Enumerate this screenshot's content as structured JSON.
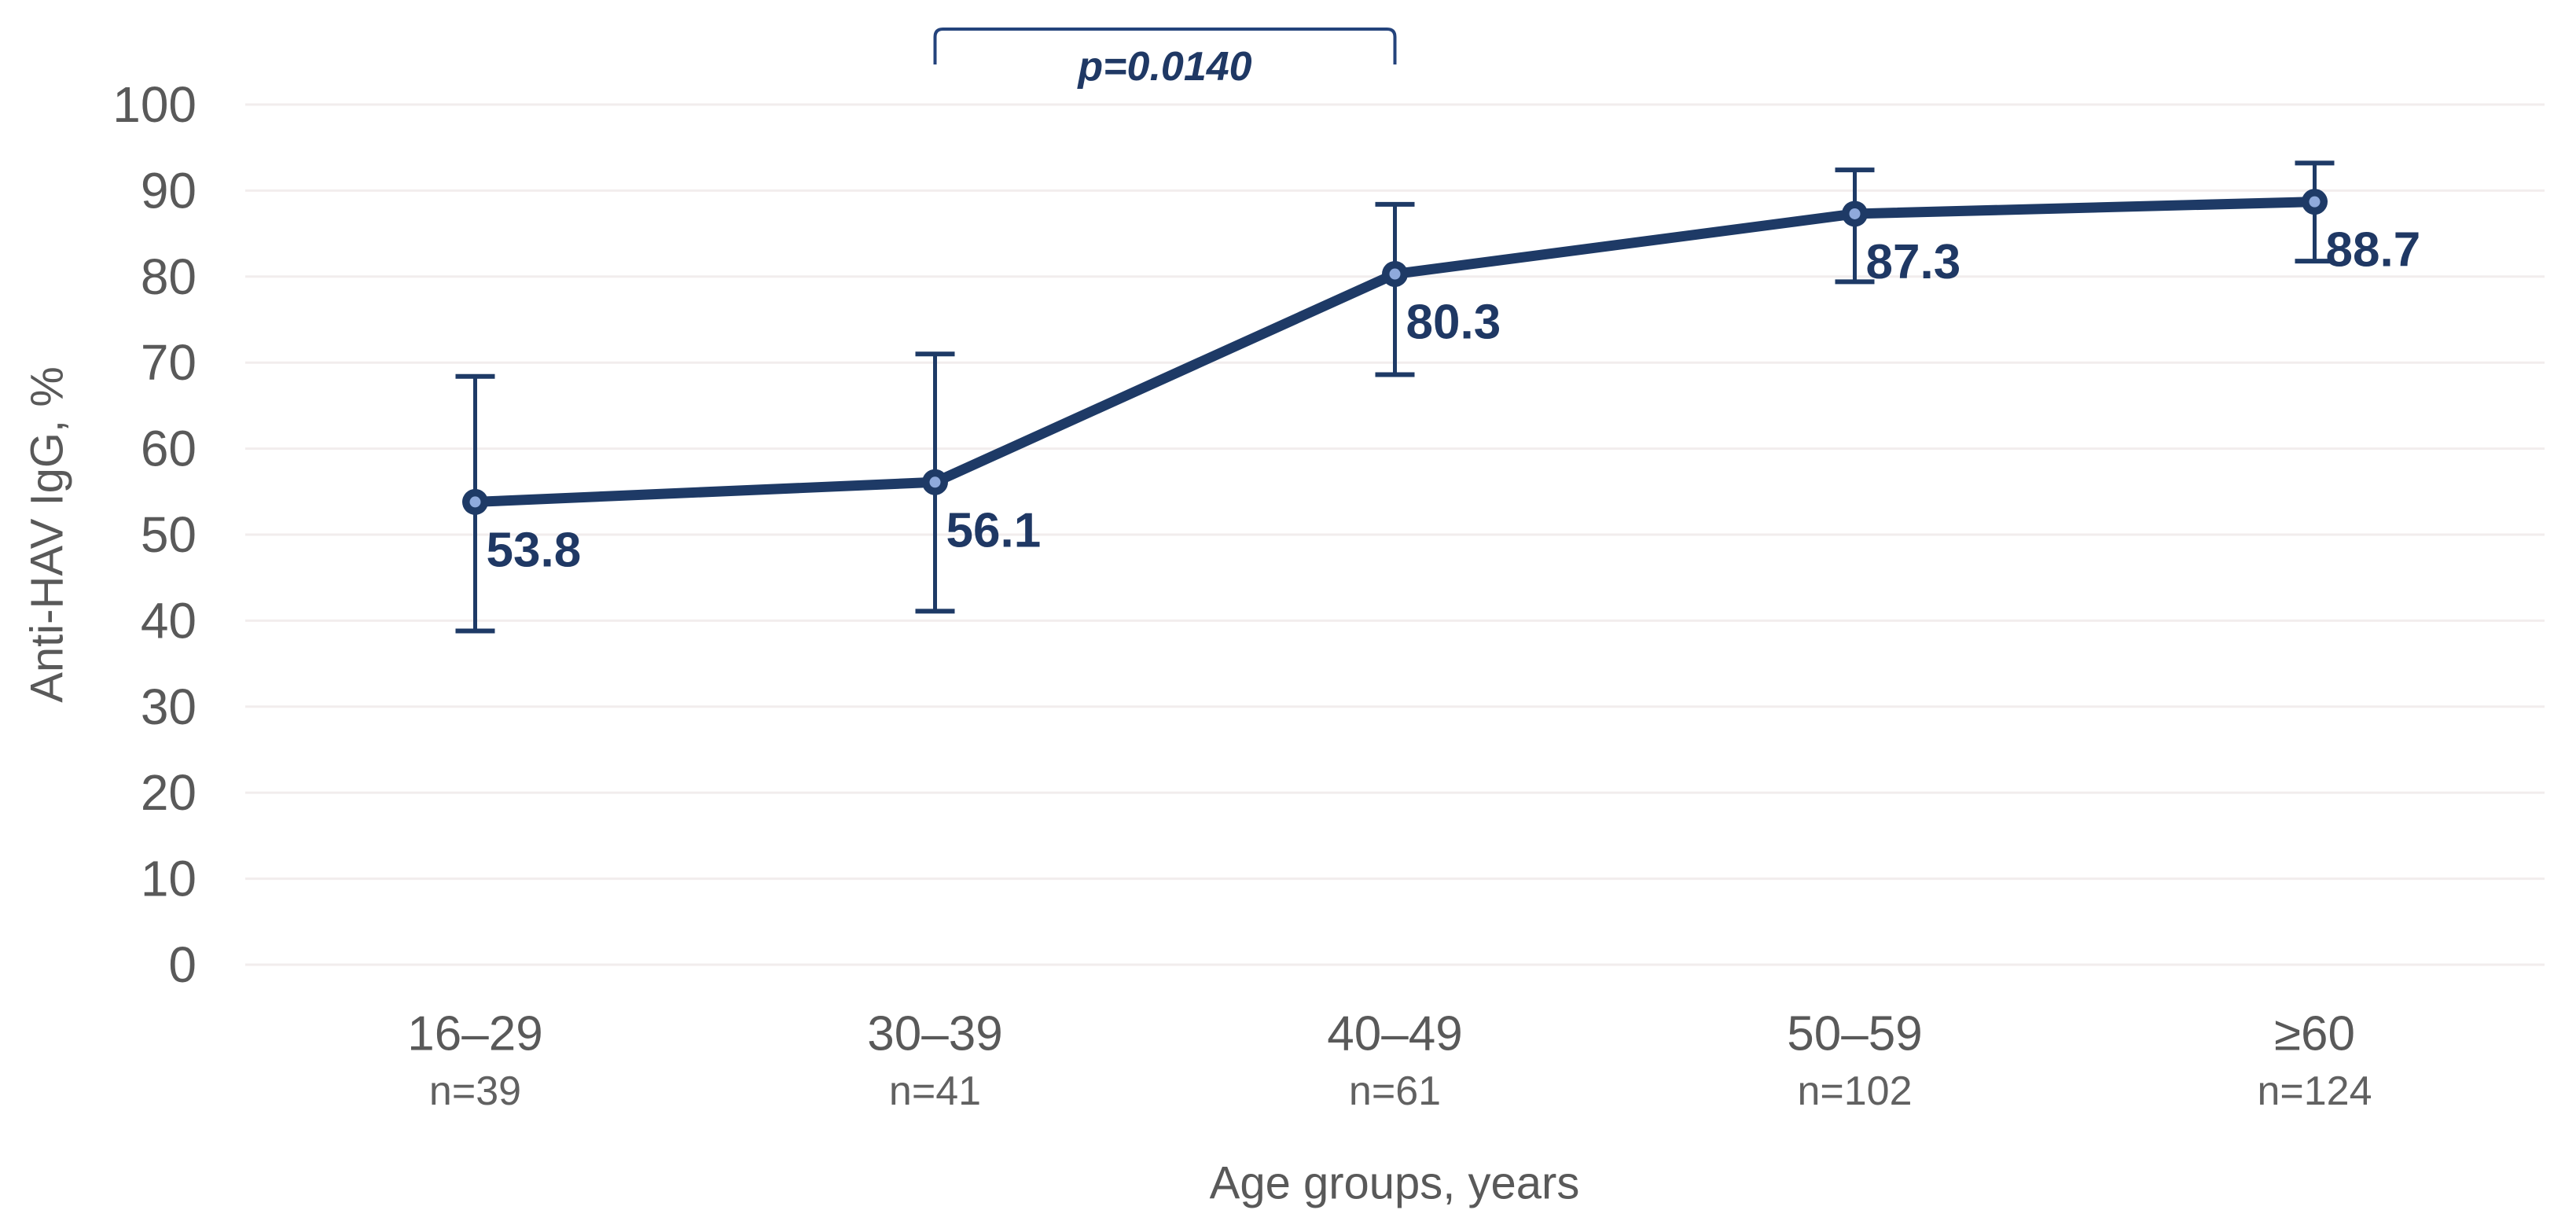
{
  "chart_data": {
    "type": "line",
    "title": "",
    "xlabel": "Age groups, years",
    "ylabel": "Anti-HAV IgG, %",
    "categories": [
      "16–29",
      "30–39",
      "40–49",
      "50–59",
      "≥60"
    ],
    "n_labels": [
      "n=39",
      "n=41",
      "n=61",
      "n=102",
      "n=124"
    ],
    "yticks": [
      "0",
      "10",
      "20",
      "30",
      "40",
      "50",
      "60",
      "70",
      "80",
      "90",
      "100"
    ],
    "ylim": [
      0,
      100
    ],
    "grid": "horizontal",
    "legend_position": "none",
    "series": [
      {
        "name": "Anti-HAV IgG, %",
        "values": [
          53.8,
          56.1,
          80.3,
          87.3,
          88.7
        ],
        "data_labels": [
          "53.8",
          "56.1",
          "80.3",
          "87.3",
          "88.7"
        ],
        "ci_lower": [
          38.8,
          41.1,
          68.6,
          79.4,
          81.8
        ],
        "ci_upper": [
          68.4,
          71.0,
          88.4,
          92.4,
          93.2
        ]
      }
    ],
    "annotation": {
      "text": "p=0.0140",
      "from_category": "30–39",
      "to_category": "40–49",
      "from_index": 1,
      "to_index": 2
    }
  },
  "colors": {
    "line": "#1e3a66",
    "marker_ring": "#1e3a66",
    "marker_fill": "#8faadc",
    "error_bar": "#1e3a66",
    "data_label": "#1f3864",
    "bracket": "#24437c",
    "p_text": "#1f3864",
    "axis_text": "#595959",
    "n_text": "#616161",
    "gridline": "#f2eded",
    "background": "#ffffff"
  }
}
